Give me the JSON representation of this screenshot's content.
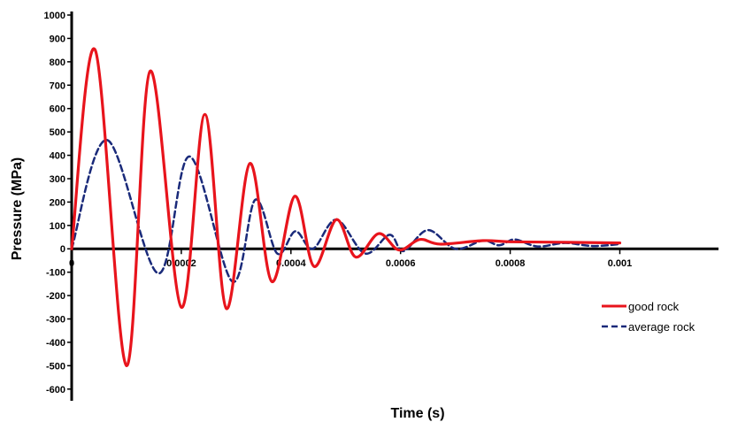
{
  "chart_data": {
    "type": "line",
    "title": "",
    "xlabel": "Time (s)",
    "ylabel": "Pressure (MPa)",
    "xlim": [
      0,
      0.00118
    ],
    "ylim": [
      -650,
      1000
    ],
    "x_ticks": [
      0,
      0.0002,
      0.0004,
      0.0006,
      0.0008,
      0.001
    ],
    "x_tick_labels": [
      "0",
      "0.0002",
      "0.0004",
      "0.0006",
      "0.0008",
      "0.001"
    ],
    "y_ticks": [
      -600,
      -500,
      -400,
      -300,
      -200,
      -100,
      0,
      100,
      200,
      300,
      400,
      500,
      600,
      700,
      800,
      900,
      1000
    ],
    "y_tick_labels": [
      "-600",
      "-500",
      "-400",
      "-300",
      "-200",
      "-100",
      "0",
      "100",
      "200",
      "300",
      "400",
      "500",
      "600",
      "700",
      "800",
      "900",
      "1000"
    ],
    "grid": false,
    "legend_position": "bottom-right",
    "series": [
      {
        "name": "good rock",
        "color": "#e8141c",
        "dash": "solid",
        "points": [
          [
            0,
            0
          ],
          [
            4.3e-05,
            850
          ],
          [
            0.0001,
            -500
          ],
          [
            0.000143,
            760
          ],
          [
            0.0002,
            -250
          ],
          [
            0.000243,
            575
          ],
          [
            0.000282,
            -255
          ],
          [
            0.000325,
            365
          ],
          [
            0.000365,
            -140
          ],
          [
            0.000407,
            225
          ],
          [
            0.000442,
            -75
          ],
          [
            0.000483,
            125
          ],
          [
            0.000518,
            -35
          ],
          [
            0.00056,
            65
          ],
          [
            0.000597,
            -5
          ],
          [
            0.000635,
            40
          ],
          [
            0.000672,
            20
          ],
          [
            0.00075,
            35
          ],
          [
            0.0008,
            30
          ],
          [
            0.0009,
            28
          ],
          [
            0.001,
            25
          ]
        ]
      },
      {
        "name": "average rock",
        "color": "#1a2a7a",
        "dash": "dashed",
        "points": [
          [
            0,
            0
          ],
          [
            6.5e-05,
            465
          ],
          [
            0.000158,
            -105
          ],
          [
            0.000215,
            395
          ],
          [
            0.000293,
            -140
          ],
          [
            0.000335,
            210
          ],
          [
            0.000375,
            -20
          ],
          [
            0.000408,
            75
          ],
          [
            0.00044,
            0
          ],
          [
            0.000483,
            125
          ],
          [
            0.000535,
            -20
          ],
          [
            0.00058,
            60
          ],
          [
            0.000605,
            -10
          ],
          [
            0.00065,
            80
          ],
          [
            0.0007,
            0
          ],
          [
            0.00075,
            35
          ],
          [
            0.00078,
            15
          ],
          [
            0.000808,
            40
          ],
          [
            0.00085,
            10
          ],
          [
            0.0009,
            25
          ],
          [
            0.00095,
            12
          ],
          [
            0.001,
            20
          ]
        ]
      }
    ]
  }
}
